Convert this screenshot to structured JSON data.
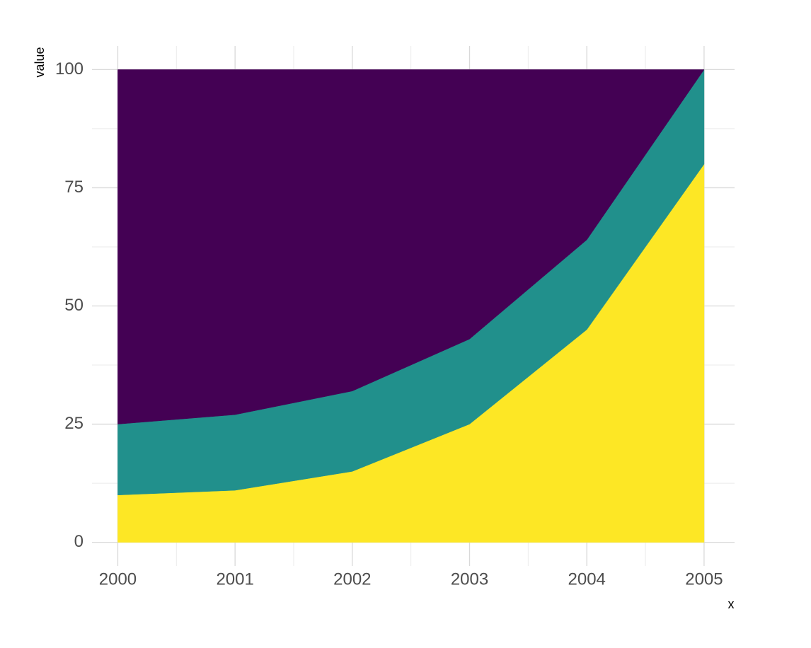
{
  "chart_data": {
    "type": "stacked-area",
    "x": [
      2000,
      2001,
      2002,
      2003,
      2004,
      2005
    ],
    "series": [
      {
        "color": "#fde725",
        "values": [
          10,
          11,
          15,
          25,
          45,
          80
        ]
      },
      {
        "color": "#21908c",
        "values": [
          15,
          16,
          17,
          18,
          19,
          20
        ]
      },
      {
        "color": "#440154",
        "values": [
          75,
          73,
          68,
          57,
          36,
          0
        ]
      }
    ],
    "xlim": [
      1999.78,
      2005.26
    ],
    "ylim": [
      -5,
      105
    ],
    "xticks": [
      2000,
      2001,
      2002,
      2003,
      2004,
      2005
    ],
    "yticks": [
      0,
      25,
      50,
      75,
      100
    ],
    "xlabel": "x",
    "ylabel": "value",
    "grid": true
  }
}
